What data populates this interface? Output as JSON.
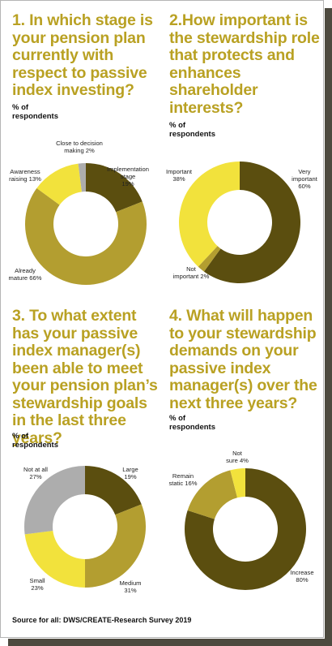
{
  "source": "Source for all: DWS/CREATE-Research Survey 2019",
  "colors": {
    "dark_olive": "#5b4e0f",
    "olive": "#b39e30",
    "yellow": "#f2e23c",
    "grey": "#adadad",
    "title": "#b9a123"
  },
  "chart_data": [
    {
      "type": "pie",
      "title": "1. In which stage is your pension plan currently with respect to passive index investing?",
      "subtitle": "% of respondents",
      "slices": [
        {
          "label_lines": [
            "Implementation",
            "stage",
            "19%"
          ],
          "value": 19,
          "color": "#5b4e0f"
        },
        {
          "label_lines": [
            "Already",
            "mature 66%"
          ],
          "value": 66,
          "color": "#b39e30"
        },
        {
          "label_lines": [
            "Awareness",
            "raising 13%"
          ],
          "value": 13,
          "color": "#f2e23c"
        },
        {
          "label_lines": [
            "Close to decision",
            "making 2%"
          ],
          "value": 2,
          "color": "#adadad"
        }
      ]
    },
    {
      "type": "pie",
      "title": "2.How important is the stewardship role that protects and enhances shareholder interests?",
      "subtitle": "% of respondents",
      "slices": [
        {
          "label_lines": [
            "Very",
            "important",
            "60%"
          ],
          "value": 60,
          "color": "#5b4e0f"
        },
        {
          "label_lines": [
            "Not",
            "important 2%"
          ],
          "value": 2,
          "color": "#b39e30"
        },
        {
          "label_lines": [
            "Important",
            "38%"
          ],
          "value": 38,
          "color": "#f2e23c"
        }
      ]
    },
    {
      "type": "pie",
      "title": "3. To what extent has your passive index manager(s) been able to meet your pension plan’s stewardship goals in the last three years?",
      "subtitle": "% of respondents",
      "slices": [
        {
          "label_lines": [
            "Large",
            "19%"
          ],
          "value": 19,
          "color": "#5b4e0f"
        },
        {
          "label_lines": [
            "Medium",
            "31%"
          ],
          "value": 31,
          "color": "#b39e30"
        },
        {
          "label_lines": [
            "Small",
            "23%"
          ],
          "value": 23,
          "color": "#f2e23c"
        },
        {
          "label_lines": [
            "Not at all",
            "27%"
          ],
          "value": 27,
          "color": "#adadad"
        }
      ]
    },
    {
      "type": "pie",
      "title": "4. What will happen to your stewardship demands on your passive index manager(s) over the next three years?",
      "subtitle": "% of respondents",
      "slices": [
        {
          "label_lines": [
            "Increase",
            "80%"
          ],
          "value": 80,
          "color": "#5b4e0f"
        },
        {
          "label_lines": [
            "Remain",
            "static 16%"
          ],
          "value": 16,
          "color": "#b39e30"
        },
        {
          "label_lines": [
            "Not",
            "sure 4%"
          ],
          "value": 4,
          "color": "#f2e23c"
        }
      ]
    }
  ]
}
